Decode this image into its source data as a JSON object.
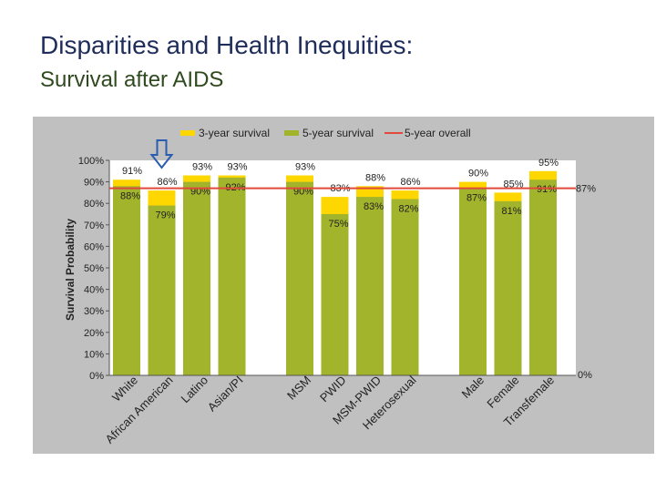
{
  "page": {
    "title": "Disparities and Health Inequities:",
    "subtitle": "Survival after AIDS"
  },
  "chart_data": {
    "type": "bar",
    "title": "",
    "xlabel": "",
    "ylabel": "Survival Probability",
    "ylim": [
      0,
      100
    ],
    "yticks": [
      "0%",
      "10%",
      "20%",
      "30%",
      "40%",
      "50%",
      "60%",
      "70%",
      "80%",
      "90%",
      "100%"
    ],
    "legend": [
      {
        "name": "3-year survival",
        "color": "#ffd700"
      },
      {
        "name": "5-year survival",
        "color": "#a2b42c"
      },
      {
        "name": "5-year overall",
        "color": "#e0493b"
      }
    ],
    "overall_5yr": 87,
    "overall_label": "87%",
    "right_axis_label": "0%",
    "groups": [
      [
        "White",
        "African American",
        "Latino",
        "Asian/PI"
      ],
      [
        "MSM",
        "PWID",
        "MSM-PWID",
        "Heterosexual"
      ],
      [
        "Male",
        "Female",
        "Transfemale"
      ]
    ],
    "categories": [
      "White",
      "African American",
      "Latino",
      "Asian/PI",
      "MSM",
      "PWID",
      "MSM-PWID",
      "Heterosexual",
      "Male",
      "Female",
      "Transfemale"
    ],
    "series": [
      {
        "name": "3-year survival",
        "values": [
          91,
          86,
          93,
          93,
          93,
          83,
          88,
          86,
          90,
          85,
          95
        ]
      },
      {
        "name": "5-year survival",
        "values": [
          88,
          79,
          90,
          92,
          90,
          75,
          83,
          82,
          87,
          81,
          91
        ]
      }
    ],
    "labels_3yr": [
      "91%",
      "86%",
      "93%",
      "93%",
      "93%",
      "83%",
      "88%",
      "86%",
      "90%",
      "85%",
      "95%"
    ],
    "labels_5yr": [
      "88%",
      "79%",
      "90%",
      "92%",
      "90%",
      "75%",
      "83%",
      "82%",
      "87%",
      "81%",
      "91%"
    ],
    "highlight": {
      "category": "African American",
      "marker": "down-arrow"
    }
  }
}
